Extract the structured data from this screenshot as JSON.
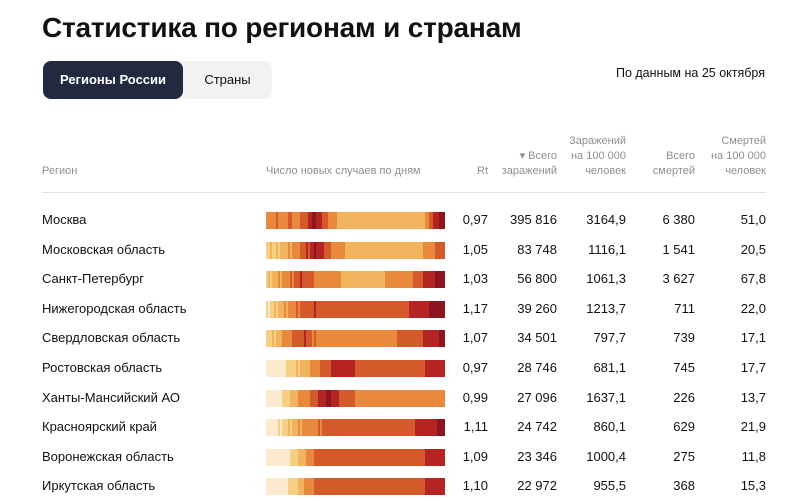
{
  "title": "Статистика по регионам и странам",
  "tabs": [
    {
      "label": "Регионы России",
      "active": true
    },
    {
      "label": "Страны",
      "active": false
    }
  ],
  "date_note": "По данным на 25 октября",
  "columns": {
    "region": "Регион",
    "daily": "Число новых случаев по дням",
    "rt": "Rt",
    "total_cases": [
      "▾ Всего",
      "заражений"
    ],
    "cases_per_100k": [
      "Заражений",
      "на 100 000",
      "человек"
    ],
    "total_deaths": [
      "Всего",
      "смертей"
    ],
    "deaths_per_100k": [
      "Смертей",
      "на 100 000",
      "человек"
    ]
  },
  "heat_palette": [
    "#fbeacd",
    "#f6cf84",
    "#f1b35e",
    "#e8893d",
    "#d55a2a",
    "#b52422",
    "#8c1520"
  ],
  "rows": [
    {
      "region": "Москва",
      "rt": "0,97",
      "total_cases": "395 816",
      "cases_per_100k": "3164,9",
      "total_deaths": "6 380",
      "deaths_per_100k": "51,0",
      "heat": [
        3,
        3,
        3,
        3,
        3,
        4,
        3,
        3,
        3,
        3,
        3,
        4,
        4,
        3,
        3,
        3,
        3,
        4,
        4,
        4,
        4,
        5,
        5,
        6,
        6,
        5,
        5,
        5,
        4,
        4,
        4,
        3,
        3,
        3,
        3,
        3,
        2,
        2,
        2,
        2,
        2,
        2,
        2,
        2,
        2,
        2,
        2,
        2,
        2,
        2,
        2,
        2,
        2,
        2,
        2,
        2,
        2,
        2,
        2,
        2,
        2,
        2,
        2,
        2,
        2,
        2,
        2,
        2,
        2,
        2,
        2,
        2,
        2,
        2,
        2,
        2,
        2,
        2,
        2,
        2,
        3,
        3,
        4,
        4,
        5,
        5,
        5,
        6,
        6,
        6
      ]
    },
    {
      "region": "Московская область",
      "rt": "1,05",
      "total_cases": "83 748",
      "cases_per_100k": "1116,1",
      "total_deaths": "1 541",
      "deaths_per_100k": "20,5",
      "heat": [
        1,
        1,
        2,
        1,
        1,
        2,
        1,
        2,
        2,
        2,
        2,
        3,
        2,
        3,
        3,
        3,
        3,
        4,
        4,
        4,
        5,
        4,
        5,
        5,
        6,
        5,
        5,
        5,
        5,
        4,
        4,
        4,
        4,
        3,
        3,
        3,
        3,
        3,
        3,
        3,
        2,
        2,
        2,
        2,
        2,
        2,
        2,
        2,
        2,
        2,
        2,
        2,
        2,
        2,
        2,
        2,
        2,
        2,
        2,
        2,
        2,
        2,
        2,
        2,
        2,
        2,
        2,
        2,
        2,
        2,
        2,
        2,
        2,
        2,
        2,
        2,
        2,
        2,
        2,
        3,
        3,
        3,
        3,
        3,
        3,
        4,
        4,
        4,
        4,
        4
      ]
    },
    {
      "region": "Санкт-Петербург",
      "rt": "1,03",
      "total_cases": "56 800",
      "cases_per_100k": "1061,3",
      "total_deaths": "3 627",
      "deaths_per_100k": "67,8",
      "heat": [
        1,
        2,
        1,
        2,
        2,
        2,
        3,
        2,
        3,
        3,
        3,
        3,
        4,
        3,
        4,
        4,
        4,
        5,
        4,
        4,
        4,
        4,
        4,
        4,
        3,
        3,
        3,
        3,
        3,
        3,
        3,
        3,
        3,
        3,
        3,
        3,
        3,
        3,
        2,
        2,
        2,
        2,
        2,
        2,
        2,
        2,
        2,
        2,
        2,
        2,
        2,
        2,
        2,
        2,
        2,
        2,
        2,
        2,
        2,
        2,
        3,
        3,
        3,
        3,
        3,
        3,
        3,
        3,
        3,
        3,
        3,
        3,
        3,
        3,
        4,
        4,
        4,
        4,
        4,
        5,
        5,
        5,
        5,
        5,
        5,
        6,
        6,
        6,
        6,
        6
      ]
    },
    {
      "region": "Нижегородская область",
      "rt": "1,17",
      "total_cases": "39 260",
      "cases_per_100k": "1213,7",
      "total_deaths": "711",
      "deaths_per_100k": "22,0",
      "heat": [
        1,
        0,
        1,
        1,
        2,
        1,
        2,
        2,
        2,
        3,
        2,
        3,
        3,
        3,
        3,
        4,
        3,
        4,
        4,
        4,
        4,
        4,
        4,
        4,
        5,
        4,
        4,
        4,
        4,
        4,
        4,
        4,
        4,
        4,
        4,
        4,
        4,
        4,
        4,
        4,
        4,
        4,
        4,
        4,
        4,
        4,
        4,
        4,
        4,
        4,
        4,
        4,
        4,
        4,
        4,
        4,
        4,
        4,
        4,
        4,
        4,
        4,
        4,
        4,
        4,
        4,
        4,
        4,
        4,
        4,
        4,
        4,
        5,
        5,
        5,
        5,
        5,
        5,
        5,
        5,
        5,
        5,
        6,
        6,
        6,
        6,
        6,
        6,
        6,
        6
      ]
    },
    {
      "region": "Свердловская область",
      "rt": "1,07",
      "total_cases": "34 501",
      "cases_per_100k": "797,7",
      "total_deaths": "739",
      "deaths_per_100k": "17,1",
      "heat": [
        1,
        1,
        1,
        2,
        1,
        2,
        2,
        2,
        3,
        3,
        3,
        3,
        3,
        4,
        4,
        4,
        4,
        4,
        4,
        5,
        4,
        4,
        4,
        3,
        4,
        3,
        3,
        3,
        3,
        3,
        3,
        3,
        3,
        3,
        3,
        3,
        3,
        3,
        3,
        3,
        3,
        3,
        3,
        3,
        3,
        3,
        3,
        3,
        3,
        3,
        3,
        3,
        3,
        3,
        3,
        3,
        3,
        3,
        3,
        3,
        3,
        3,
        3,
        3,
        3,
        3,
        4,
        4,
        4,
        4,
        4,
        4,
        4,
        4,
        4,
        4,
        4,
        4,
        4,
        5,
        5,
        5,
        5,
        5,
        5,
        5,
        5,
        6,
        6,
        6
      ]
    },
    {
      "region": "Ростовская область",
      "rt": "0,97",
      "total_cases": "28 746",
      "cases_per_100k": "681,1",
      "total_deaths": "745",
      "deaths_per_100k": "17,7",
      "heat": [
        0,
        0,
        0,
        0,
        0,
        0,
        0,
        0,
        0,
        0,
        1,
        1,
        1,
        1,
        1,
        2,
        1,
        2,
        2,
        2,
        2,
        2,
        3,
        3,
        3,
        3,
        3,
        4,
        4,
        4,
        4,
        4,
        4,
        5,
        5,
        5,
        5,
        5,
        5,
        5,
        5,
        5,
        5,
        5,
        5,
        4,
        4,
        4,
        4,
        4,
        4,
        4,
        4,
        4,
        4,
        4,
        4,
        4,
        4,
        4,
        4,
        4,
        4,
        4,
        4,
        4,
        4,
        4,
        4,
        4,
        4,
        4,
        4,
        4,
        4,
        4,
        4,
        4,
        4,
        4,
        5,
        5,
        5,
        5,
        5,
        5,
        5,
        5,
        5,
        5
      ]
    },
    {
      "region": "Ханты-Мансийский АО",
      "rt": "0,99",
      "total_cases": "27 096",
      "cases_per_100k": "1637,1",
      "total_deaths": "226",
      "deaths_per_100k": "13,7",
      "heat": [
        0,
        0,
        0,
        0,
        0,
        0,
        0,
        0,
        1,
        1,
        1,
        1,
        2,
        2,
        2,
        2,
        3,
        3,
        3,
        3,
        3,
        3,
        4,
        4,
        4,
        4,
        5,
        5,
        5,
        5,
        6,
        6,
        6,
        5,
        5,
        5,
        5,
        4,
        4,
        4,
        4,
        4,
        4,
        4,
        4,
        3,
        3,
        3,
        3,
        3,
        3,
        3,
        3,
        3,
        3,
        3,
        3,
        3,
        3,
        3,
        3,
        3,
        3,
        3,
        3,
        3,
        3,
        3,
        3,
        3,
        3,
        3,
        3,
        3,
        3,
        3,
        3,
        3,
        3,
        3,
        3,
        3,
        3,
        3,
        3,
        3,
        3,
        3,
        3,
        3
      ]
    },
    {
      "region": "Красноярский край",
      "rt": "1,11",
      "total_cases": "24 742",
      "cases_per_100k": "860,1",
      "total_deaths": "629",
      "deaths_per_100k": "21,9",
      "heat": [
        0,
        0,
        0,
        0,
        0,
        0,
        1,
        0,
        1,
        1,
        1,
        2,
        1,
        2,
        2,
        2,
        3,
        2,
        3,
        3,
        3,
        3,
        3,
        3,
        3,
        3,
        4,
        3,
        4,
        4,
        4,
        4,
        4,
        4,
        4,
        4,
        4,
        4,
        4,
        4,
        4,
        4,
        4,
        4,
        4,
        4,
        4,
        4,
        4,
        4,
        4,
        4,
        4,
        4,
        4,
        4,
        4,
        4,
        4,
        4,
        4,
        4,
        4,
        4,
        4,
        4,
        4,
        4,
        4,
        4,
        4,
        4,
        4,
        4,
        4,
        5,
        5,
        5,
        5,
        5,
        5,
        5,
        5,
        5,
        5,
        5,
        6,
        6,
        6,
        6
      ]
    },
    {
      "region": "Воронежская область",
      "rt": "1,09",
      "total_cases": "23 346",
      "cases_per_100k": "1000,4",
      "total_deaths": "275",
      "deaths_per_100k": "11,8",
      "heat": [
        0,
        0,
        0,
        0,
        0,
        0,
        0,
        0,
        0,
        0,
        0,
        0,
        1,
        1,
        1,
        1,
        2,
        2,
        2,
        2,
        3,
        3,
        3,
        3,
        4,
        4,
        4,
        4,
        4,
        4,
        4,
        4,
        4,
        4,
        4,
        4,
        4,
        4,
        4,
        4,
        4,
        4,
        4,
        4,
        4,
        4,
        4,
        4,
        4,
        4,
        4,
        4,
        4,
        4,
        4,
        4,
        4,
        4,
        4,
        4,
        4,
        4,
        4,
        4,
        4,
        4,
        4,
        4,
        4,
        4,
        4,
        4,
        4,
        4,
        4,
        4,
        4,
        4,
        4,
        4,
        5,
        5,
        5,
        5,
        5,
        5,
        5,
        5,
        5,
        5
      ]
    },
    {
      "region": "Иркутская область",
      "rt": "1,10",
      "total_cases": "22 972",
      "cases_per_100k": "955,5",
      "total_deaths": "368",
      "deaths_per_100k": "15,3",
      "heat": [
        0,
        0,
        0,
        0,
        0,
        0,
        0,
        0,
        0,
        0,
        0,
        1,
        1,
        1,
        1,
        1,
        2,
        2,
        2,
        3,
        3,
        3,
        3,
        3,
        4,
        4,
        4,
        4,
        4,
        4,
        4,
        4,
        4,
        4,
        4,
        4,
        4,
        4,
        4,
        4,
        4,
        4,
        4,
        4,
        4,
        4,
        4,
        4,
        4,
        4,
        4,
        4,
        4,
        4,
        4,
        4,
        4,
        4,
        4,
        4,
        4,
        4,
        4,
        4,
        4,
        4,
        4,
        4,
        4,
        4,
        4,
        4,
        4,
        4,
        4,
        4,
        4,
        4,
        4,
        4,
        5,
        5,
        5,
        5,
        5,
        5,
        5,
        5,
        5,
        5
      ]
    }
  ]
}
